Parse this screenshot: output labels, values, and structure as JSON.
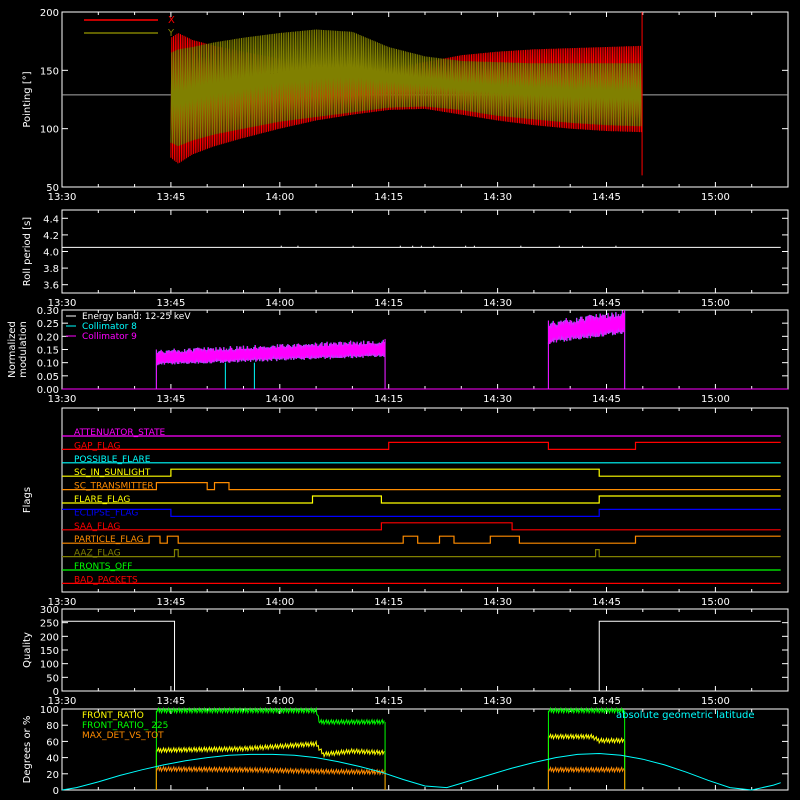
{
  "chart_data": [
    {
      "type": "line",
      "id": "pointing",
      "ylabel": "Pointing [°]",
      "ylim": [
        50,
        200
      ],
      "yticks": [
        50,
        100,
        150,
        200
      ],
      "xlim": [
        810,
        910
      ],
      "xticks": [
        "13:30",
        "13:45",
        "14:00",
        "14:15",
        "14:30",
        "14:45",
        "15:00"
      ],
      "hline": 129,
      "series": [
        {
          "name": "X",
          "color": "#ff0000",
          "envelope": {
            "t": [
              825,
              826,
              828,
              831,
              835,
              840,
              845,
              850,
              855,
              860,
              865,
              870,
              875,
              880,
              885,
              889.9
            ],
            "lo": [
              75,
              70,
              78,
              85,
              92,
              100,
              107,
              112,
              116,
              117,
              112,
              107,
              103,
              100,
              98,
              97
            ],
            "hi": [
              178,
              182,
              176,
              171,
              166,
              160,
              155,
              151,
              152,
              157,
              163,
              166,
              168,
              169,
              170,
              171
            ]
          }
        },
        {
          "name": "Y",
          "color": "#808000",
          "envelope": {
            "t": [
              825,
              826,
              828,
              831,
              835,
              840,
              845,
              850,
              855,
              860,
              865,
              870,
              875,
              880,
              885,
              889.9
            ],
            "lo": [
              88,
              85,
              90,
              95,
              100,
              106,
              110,
              114,
              118,
              119,
              116,
              111,
              108,
              105,
              103,
              102
            ],
            "hi": [
              165,
              168,
              170,
              174,
              178,
              182,
              185,
              183,
              170,
              162,
              158,
              157,
              156,
              156,
              156,
              156
            ]
          }
        }
      ]
    },
    {
      "type": "line",
      "id": "roll",
      "ylabel": "Roll period [s]",
      "ylim": [
        3.5,
        4.5
      ],
      "yticks": [
        3.6,
        3.8,
        4.0,
        4.2,
        4.4
      ],
      "xlim": [
        810,
        910
      ],
      "xticks": [
        "13:30",
        "13:45",
        "14:00",
        "14:15",
        "14:30",
        "14:45",
        "15:00"
      ],
      "series": [
        {
          "color": "#ffffff",
          "t": [
            810,
            909
          ],
          "y": [
            4.05,
            4.05
          ]
        }
      ]
    },
    {
      "type": "line",
      "id": "modulation",
      "ylabel": "Normalized modulation",
      "ylim": [
        0,
        0.3
      ],
      "yticks": [
        0.0,
        0.05,
        0.1,
        0.15,
        0.2,
        0.25,
        0.3
      ],
      "xlim": [
        810,
        910
      ],
      "xticks": [
        "13:30",
        "13:45",
        "14:00",
        "14:15",
        "14:30",
        "14:45",
        "15:00"
      ],
      "legend": [
        "Energy band: 12-25 keV",
        "Collimator 8",
        "Collimator 9"
      ],
      "series": [
        {
          "name": "Collimator 8",
          "color": "#00ffff",
          "segments": [
            {
              "t0": 823,
              "t1": 854.5,
              "lo": [
                0.09,
                0.12
              ],
              "hi": [
                0.15,
                0.19
              ]
            },
            {
              "t0": 877,
              "t1": 887.5,
              "lo": [
                0.17,
                0.21
              ],
              "hi": [
                0.26,
                0.3
              ]
            }
          ]
        },
        {
          "name": "Collimator 9",
          "color": "#ff00ff",
          "segments": [
            {
              "t0": 823,
              "t1": 854.5,
              "lo": [
                0.09,
                0.12
              ],
              "hi": [
                0.15,
                0.19
              ]
            },
            {
              "t0": 877,
              "t1": 887.5,
              "lo": [
                0.17,
                0.21
              ],
              "hi": [
                0.26,
                0.3
              ]
            }
          ]
        }
      ]
    },
    {
      "type": "line",
      "id": "flags",
      "ylabel": "Flags",
      "xlim": [
        810,
        910
      ],
      "xticks": [
        "13:30",
        "13:45",
        "14:00",
        "14:15",
        "14:30",
        "14:45",
        "15:00"
      ],
      "flags": [
        {
          "name": "ATTENUATOR_STATE",
          "color": "#ff00ff",
          "steps": [
            [
              810,
              0
            ],
            [
              909,
              0
            ]
          ]
        },
        {
          "name": "GAP_FLAG",
          "color": "#ff0000",
          "steps": [
            [
              810,
              0
            ],
            [
              855,
              0
            ],
            [
              855,
              1
            ],
            [
              877,
              1
            ],
            [
              877,
              0
            ],
            [
              889,
              0
            ],
            [
              889,
              1
            ],
            [
              909,
              1
            ]
          ]
        },
        {
          "name": "POSSIBLE_FLARE",
          "color": "#00ffff",
          "steps": [
            [
              810,
              0
            ],
            [
              909,
              0
            ]
          ]
        },
        {
          "name": "SC_IN_SUNLIGHT",
          "color": "#ffff00",
          "steps": [
            [
              810,
              0
            ],
            [
              825,
              0
            ],
            [
              825,
              1
            ],
            [
              884,
              1
            ],
            [
              884,
              0
            ],
            [
              909,
              0
            ]
          ]
        },
        {
          "name": "SC_TRANSMITTER",
          "color": "#ff8c00",
          "steps": [
            [
              810,
              0
            ],
            [
              823,
              0
            ],
            [
              823,
              1
            ],
            [
              830,
              1
            ],
            [
              830,
              0
            ],
            [
              831,
              0
            ],
            [
              831,
              1
            ],
            [
              833,
              1
            ],
            [
              833,
              0
            ],
            [
              909,
              0
            ]
          ]
        },
        {
          "name": "FLARE_FLAG",
          "color": "#ffff00",
          "steps": [
            [
              810,
              0
            ],
            [
              844.5,
              0
            ],
            [
              844.5,
              1
            ],
            [
              854,
              1
            ],
            [
              854,
              0
            ],
            [
              884,
              0
            ],
            [
              884,
              1
            ],
            [
              909,
              1
            ]
          ]
        },
        {
          "name": "ECLIPSE_FLAG",
          "color": "#0000ff",
          "steps": [
            [
              810,
              1
            ],
            [
              825,
              1
            ],
            [
              825,
              0
            ],
            [
              884,
              0
            ],
            [
              884,
              1
            ],
            [
              909,
              1
            ]
          ]
        },
        {
          "name": "SAA_FLAG",
          "color": "#ff0000",
          "steps": [
            [
              810,
              0
            ],
            [
              854,
              0
            ],
            [
              854,
              1
            ],
            [
              872,
              1
            ],
            [
              872,
              0
            ],
            [
              909,
              0
            ]
          ]
        },
        {
          "name": "PARTICLE_FLAG",
          "color": "#ff8c00",
          "steps": [
            [
              810,
              0
            ],
            [
              822,
              0
            ],
            [
              822,
              1
            ],
            [
              823.5,
              1
            ],
            [
              823.5,
              0
            ],
            [
              824.5,
              0
            ],
            [
              824.5,
              1
            ],
            [
              826,
              1
            ],
            [
              826,
              0
            ],
            [
              857,
              0
            ],
            [
              857,
              1
            ],
            [
              859,
              1
            ],
            [
              859,
              0
            ],
            [
              862,
              0
            ],
            [
              862,
              1
            ],
            [
              864,
              1
            ],
            [
              864,
              0
            ],
            [
              869,
              0
            ],
            [
              869,
              1
            ],
            [
              873,
              1
            ],
            [
              873,
              0
            ],
            [
              889,
              0
            ],
            [
              889,
              1
            ],
            [
              909,
              1
            ]
          ]
        },
        {
          "name": "AAZ_FLAG",
          "color": "#808000",
          "steps": [
            [
              810,
              0
            ],
            [
              825.5,
              0
            ],
            [
              825.5,
              1
            ],
            [
              826,
              1
            ],
            [
              826,
              0
            ],
            [
              883.5,
              0
            ],
            [
              883.5,
              1
            ],
            [
              884,
              1
            ],
            [
              884,
              0
            ],
            [
              909,
              0
            ]
          ]
        },
        {
          "name": "FRONTS_OFF",
          "color": "#00ff00",
          "steps": [
            [
              810,
              0
            ],
            [
              909,
              0
            ]
          ]
        },
        {
          "name": "BAD_PACKETS",
          "color": "#ff0000",
          "steps": [
            [
              810,
              0
            ],
            [
              909,
              0
            ]
          ]
        }
      ]
    },
    {
      "type": "line",
      "id": "quality",
      "ylabel": "Quality",
      "ylim": [
        0,
        300
      ],
      "yticks": [
        0,
        50,
        100,
        150,
        200,
        250,
        300
      ],
      "xlim": [
        810,
        910
      ],
      "xticks": [
        "13:30",
        "13:45",
        "14:00",
        "14:15",
        "14:30",
        "14:45",
        "15:00"
      ],
      "series": [
        {
          "color": "#ffffff",
          "t": [
            810,
            825.5,
            825.5,
            884,
            884,
            909
          ],
          "y": [
            255,
            255,
            0,
            0,
            255,
            255
          ]
        }
      ]
    },
    {
      "type": "line",
      "id": "ratios",
      "ylabel": "Degrees or %",
      "ylim": [
        0,
        100
      ],
      "yticks": [
        0,
        20,
        40,
        60,
        80,
        100
      ],
      "xlim": [
        810,
        910
      ],
      "xticks": [],
      "legend": [
        "FRONT_RATIO",
        "FRONT_RATIO_ 225",
        "MAX_DET_VS_TOT"
      ],
      "annotation": "absolute geometric latitude",
      "series": [
        {
          "name": "FRONT_RATIO",
          "color": "#ffff00",
          "segments": [
            {
              "t": [
                823,
                835,
                845,
                846,
                850,
                854.5
              ],
              "y": [
                49,
                51,
                57,
                44,
                48,
                46
              ]
            },
            {
              "t": [
                877,
                883,
                884,
                887.5
              ],
              "y": [
                66,
                66,
                61,
                61
              ]
            }
          ]
        },
        {
          "name": "FRONT_RATIO_ 225",
          "color": "#00ff00",
          "segments": [
            {
              "t": [
                823,
                845,
                845.5,
                854.5
              ],
              "y": [
                98,
                98,
                84,
                84
              ]
            },
            {
              "t": [
                877,
                887.5
              ],
              "y": [
                98,
                98
              ]
            }
          ]
        },
        {
          "name": "MAX_DET_VS_TOT",
          "color": "#ff8c00",
          "segments": [
            {
              "t": [
                823,
                835,
                845,
                854.5
              ],
              "y": [
                26,
                25,
                23,
                22
              ]
            },
            {
              "t": [
                877,
                887.5
              ],
              "y": [
                25,
                25
              ]
            }
          ]
        },
        {
          "name": "absolute geometric latitude",
          "color": "#00ffff",
          "t": [
            810,
            812,
            815,
            818,
            821,
            824,
            827,
            830,
            833,
            836,
            839,
            842,
            845,
            848,
            851,
            854,
            857,
            860,
            863,
            866,
            869,
            872,
            875,
            878,
            881,
            884,
            887,
            890,
            893,
            896,
            899,
            902,
            905,
            908,
            909
          ],
          "y": [
            0,
            3,
            10,
            18,
            25,
            31,
            36,
            40,
            43,
            44,
            44,
            43,
            40,
            35,
            29,
            22,
            13,
            5,
            3,
            11,
            19,
            27,
            34,
            40,
            44,
            45,
            43,
            38,
            31,
            22,
            12,
            3,
            0,
            6,
            9
          ]
        }
      ]
    }
  ]
}
